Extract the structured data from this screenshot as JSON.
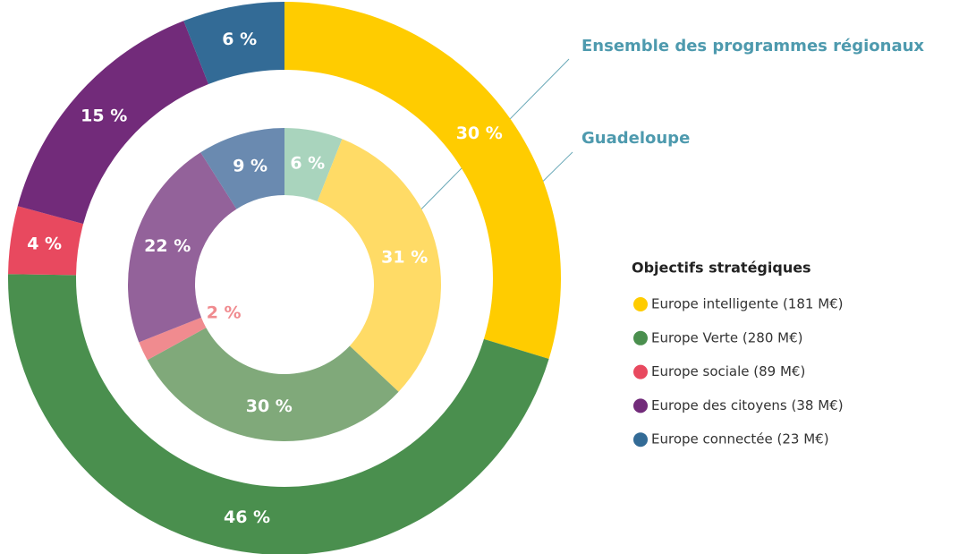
{
  "chart_data": {
    "type": "donut",
    "series": [
      {
        "name": "Guadeloupe",
        "values": [
          30,
          46,
          4,
          15,
          6
        ],
        "value_labels": [
          "30 %",
          "46 %",
          "4 %",
          "15 %",
          "6 %"
        ],
        "colors": [
          "#ffcc00",
          "#4a8f4e",
          "#e8495f",
          "#722b7a",
          "#336b96"
        ]
      },
      {
        "name": "Ensemble des programmes régionaux",
        "values": [
          6,
          31,
          30,
          2,
          22,
          9
        ],
        "value_labels": [
          "6 %",
          "31 %",
          "30 %",
          "2 %",
          "22 %",
          "9 %"
        ],
        "colors": [
          "#a9d4bd",
          "#ffdb66",
          "#80a97a",
          "#f08b8f",
          "#93629a",
          "#6a8ab0"
        ]
      }
    ],
    "legend": {
      "title": "Objectifs stratégiques",
      "labels": [
        "Europe intelligente (181 M€)",
        "Europe Verte (280 M€)",
        "Europe sociale (89 M€)",
        "Europe des citoyens (38 M€)",
        "Europe connectée (23 M€)"
      ]
    }
  }
}
